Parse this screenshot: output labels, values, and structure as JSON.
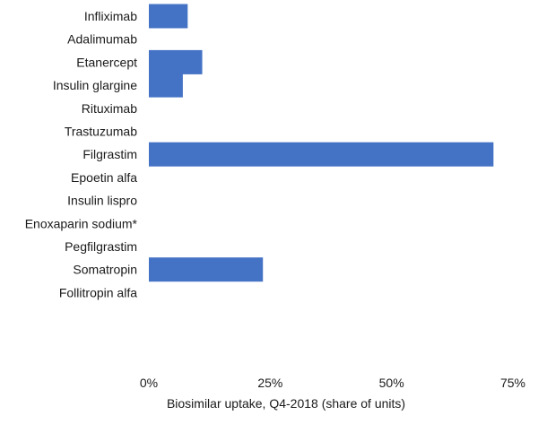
{
  "chart_data": {
    "type": "bar",
    "orientation": "horizontal",
    "title": "",
    "xlabel": "Biosimilar uptake, Q4-2018 (share of units)",
    "ylabel": "",
    "xlim": [
      0,
      0.75
    ],
    "x_ticks": [
      0,
      0.25,
      0.5,
      0.75
    ],
    "x_tick_labels": [
      "0%",
      "25%",
      "50%",
      "75%"
    ],
    "grid": false,
    "legend": "none",
    "bar_color": "#4472C4",
    "categories": [
      "Infliximab",
      "Adalimumab",
      "Etanercept",
      "Insulin glargine",
      "Rituximab",
      "Trastuzumab",
      "Filgrastim",
      "Epoetin alfa",
      "Insulin lispro",
      "Enoxaparin sodium*",
      "Pegfilgrastim",
      "Somatropin",
      "Follitropin alfa"
    ],
    "values": [
      0.08,
      0,
      0.11,
      0.07,
      0,
      0,
      0.71,
      0,
      0,
      0,
      0,
      0.235,
      0
    ]
  }
}
